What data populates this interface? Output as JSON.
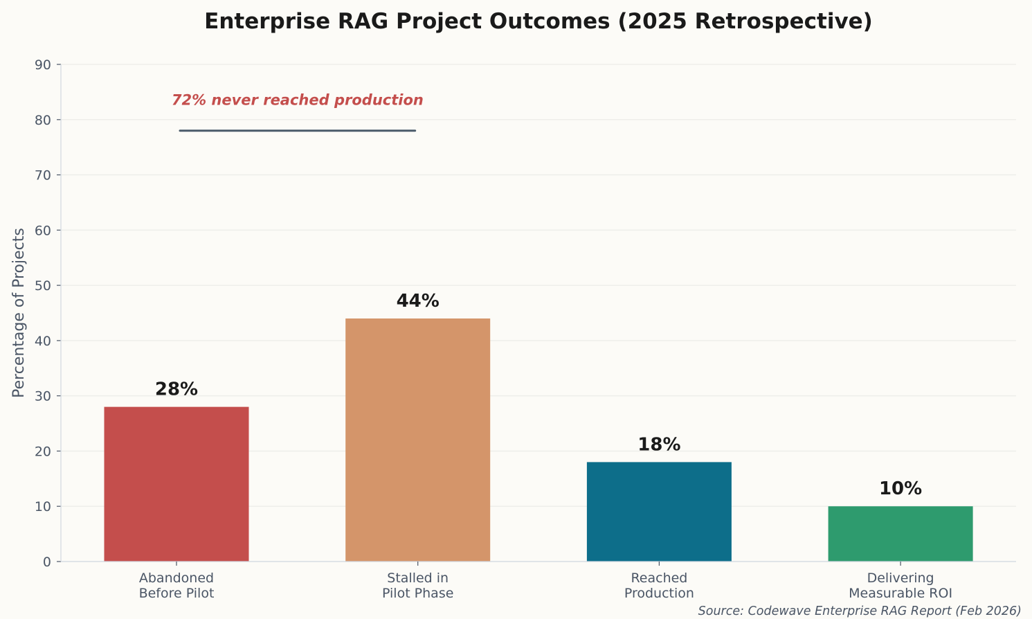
{
  "chart_data": {
    "type": "bar",
    "title": "Enterprise RAG Project Outcomes (2025 Retrospective)",
    "xlabel": "",
    "ylabel": "Percentage of Projects",
    "ylim": [
      0,
      90
    ],
    "yticks": [
      0,
      10,
      20,
      30,
      40,
      50,
      60,
      70,
      80,
      90
    ],
    "grid": true,
    "categories": [
      [
        "Abandoned",
        "Before Pilot"
      ],
      [
        "Stalled in",
        "Pilot Phase"
      ],
      [
        "Reached",
        "Production"
      ],
      [
        "Delivering",
        "Measurable ROI"
      ]
    ],
    "values": [
      28,
      44,
      18,
      10
    ],
    "data_labels": [
      "28%",
      "44%",
      "18%",
      "10%"
    ],
    "colors": [
      "#c44e4c",
      "#d4956a",
      "#0d6e8a",
      "#2e9b6e"
    ],
    "annotation": {
      "text": "72% never reached production",
      "color": "#c44e4c",
      "line_y": 78,
      "line_color": "#4a5a6a",
      "spans_categories": [
        0,
        1
      ]
    },
    "source": "Source: Codewave Enterprise RAG Report (Feb 2026)"
  }
}
